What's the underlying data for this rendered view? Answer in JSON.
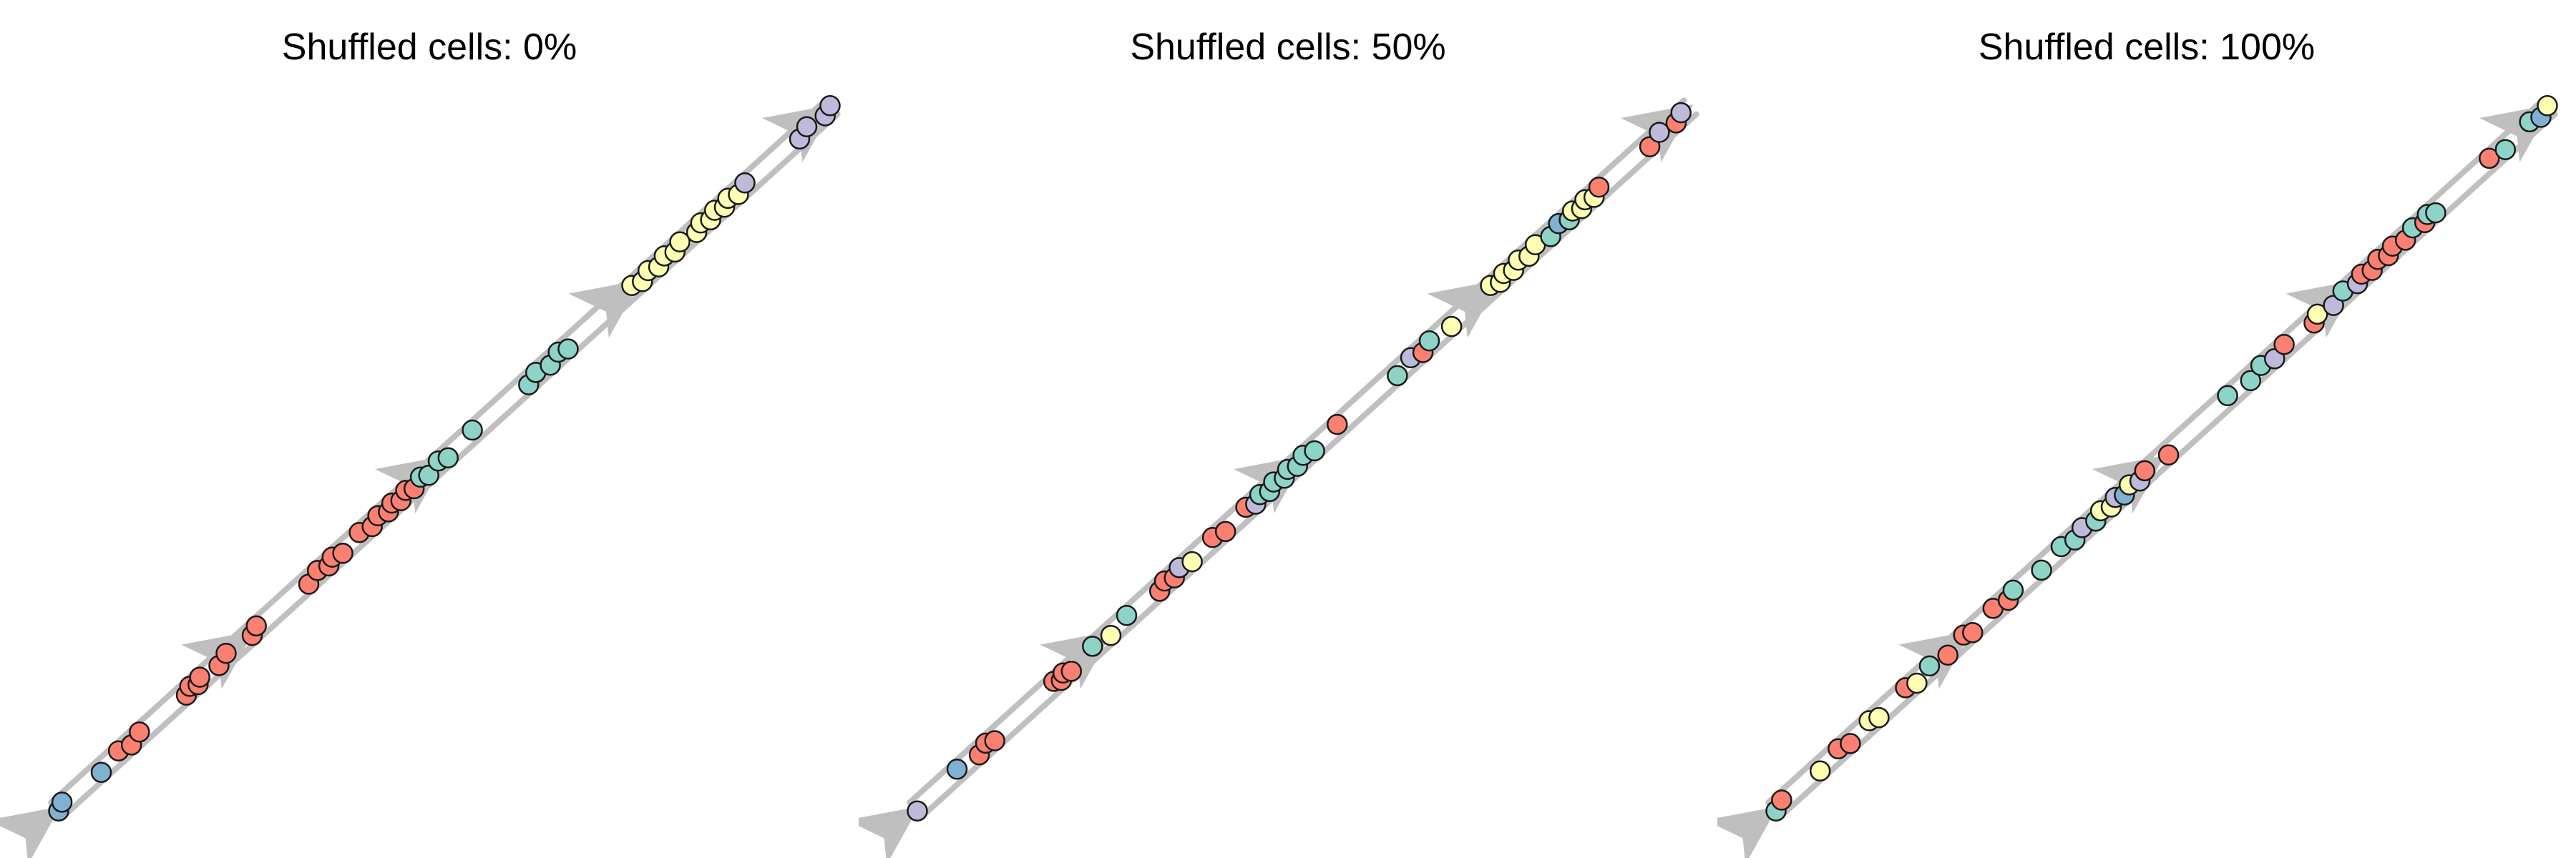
{
  "colors": {
    "edge": "#bfbfbf",
    "milestone_arrow": "#bfbfbf",
    "dot_stroke": "#1a1a1a",
    "groups": {
      "blue": "#80b1d3",
      "red": "#fb8072",
      "teal": "#8dd3c7",
      "yellow": "#ffffb3",
      "purple": "#bebada"
    }
  },
  "chart_data": [
    {
      "type": "scatter",
      "title": "Shuffled cells: 0%",
      "xlabel": "",
      "ylabel": "",
      "grid": false,
      "trajectory": {
        "milestones": 5,
        "direction": "bottom-left to top-right"
      },
      "points": {
        "t": [
          0.0,
          0.008,
          0.055,
          0.081,
          0.094,
          0.108,
          0.165,
          0.173,
          0.18,
          0.186,
          0.207,
          0.22,
          0.25,
          0.259,
          0.323,
          0.338,
          0.349,
          0.357,
          0.367,
          0.392,
          0.405,
          0.416,
          0.426,
          0.434,
          0.442,
          0.452,
          0.459,
          0.471,
          0.478,
          0.494,
          0.503,
          0.538,
          0.607,
          0.62,
          0.635,
          0.649,
          0.658,
          0.744,
          0.754,
          0.765,
          0.775,
          0.786,
          0.796,
          0.806,
          0.824,
          0.833,
          0.842,
          0.851,
          0.86,
          0.868,
          0.878,
          0.89,
          0.957,
          0.97,
          0.99,
          1.0
        ],
        "group": [
          "blue",
          "blue",
          "blue",
          "red",
          "red",
          "red",
          "red",
          "red",
          "red",
          "red",
          "red",
          "red",
          "red",
          "red",
          "red",
          "red",
          "red",
          "red",
          "red",
          "red",
          "red",
          "red",
          "red",
          "red",
          "red",
          "red",
          "red",
          "teal",
          "teal",
          "teal",
          "teal",
          "teal",
          "teal",
          "teal",
          "teal",
          "teal",
          "teal",
          "yellow",
          "yellow",
          "yellow",
          "yellow",
          "yellow",
          "yellow",
          "yellow",
          "yellow",
          "yellow",
          "yellow",
          "yellow",
          "yellow",
          "yellow",
          "yellow",
          "purple",
          "purple",
          "purple",
          "purple",
          "purple"
        ]
      }
    },
    {
      "type": "scatter",
      "title": "Shuffled cells: 50%",
      "xlabel": "",
      "ylabel": "",
      "grid": false,
      "trajectory": {
        "milestones": 5,
        "direction": "bottom-left to top-right"
      },
      "points": {
        "t": [
          0.0,
          0.055,
          0.08,
          0.092,
          0.1,
          0.18,
          0.186,
          0.192,
          0.199,
          0.23,
          0.25,
          0.274,
          0.313,
          0.323,
          0.332,
          0.342,
          0.355,
          0.385,
          0.398,
          0.428,
          0.437,
          0.446,
          0.455,
          0.464,
          0.474,
          0.482,
          0.491,
          0.502,
          0.513,
          0.546,
          0.62,
          0.641,
          0.653,
          0.665,
          0.69,
          0.744,
          0.753,
          0.761,
          0.77,
          0.78,
          0.79,
          0.802,
          0.818,
          0.832,
          0.842,
          0.85,
          0.858,
          0.866,
          0.874,
          0.884,
          0.946,
          0.962,
          0.98,
          0.99
        ],
        "group": [
          "purple",
          "blue",
          "red",
          "red",
          "red",
          "red",
          "red",
          "red",
          "red",
          "teal",
          "yellow",
          "teal",
          "red",
          "red",
          "red",
          "purple",
          "yellow",
          "red",
          "red",
          "red",
          "purple",
          "teal",
          "teal",
          "teal",
          "teal",
          "teal",
          "teal",
          "teal",
          "teal",
          "red",
          "teal",
          "purple",
          "red",
          "teal",
          "yellow",
          "yellow",
          "yellow",
          "yellow",
          "yellow",
          "yellow",
          "yellow",
          "yellow",
          "teal",
          "blue",
          "teal",
          "yellow",
          "yellow",
          "yellow",
          "yellow",
          "red",
          "red",
          "purple",
          "red",
          "purple"
        ]
      }
    },
    {
      "type": "scatter",
      "title": "Shuffled cells: 100%",
      "xlabel": "",
      "ylabel": "",
      "grid": false,
      "trajectory": {
        "milestones": 5,
        "direction": "bottom-left to top-right"
      },
      "points": {
        "t": [
          0.0,
          0.011,
          0.057,
          0.084,
          0.096,
          0.124,
          0.133,
          0.171,
          0.182,
          0.202,
          0.222,
          0.246,
          0.254,
          0.284,
          0.3,
          0.31,
          0.343,
          0.372,
          0.386,
          0.399,
          0.413,
          0.423,
          0.433,
          0.442,
          0.45,
          0.46,
          0.47,
          0.48,
          0.507,
          0.587,
          0.613,
          0.63,
          0.644,
          0.66,
          0.695,
          0.703,
          0.72,
          0.736,
          0.751,
          0.76,
          0.77,
          0.781,
          0.791,
          0.8,
          0.813,
          0.826,
          0.838,
          0.845,
          0.852,
          0.925,
          0.942,
          0.977,
          0.988,
          1.0
        ],
        "group": [
          "teal",
          "red",
          "yellow",
          "red",
          "red",
          "yellow",
          "yellow",
          "red",
          "yellow",
          "teal",
          "red",
          "red",
          "red",
          "red",
          "red",
          "teal",
          "teal",
          "teal",
          "teal",
          "purple",
          "teal",
          "yellow",
          "yellow",
          "purple",
          "blue",
          "yellow",
          "purple",
          "red",
          "red",
          "teal",
          "teal",
          "teal",
          "purple",
          "red",
          "red",
          "yellow",
          "purple",
          "teal",
          "purple",
          "red",
          "red",
          "red",
          "red",
          "red",
          "red",
          "teal",
          "red",
          "teal",
          "teal",
          "red",
          "teal",
          "teal",
          "blue",
          "yellow"
        ]
      }
    }
  ]
}
